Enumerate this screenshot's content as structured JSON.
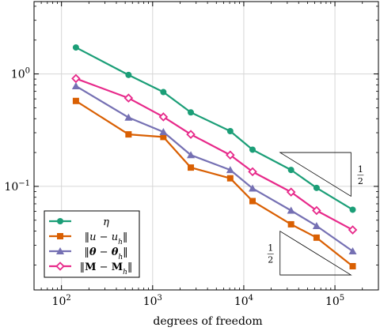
{
  "chart_data": {
    "type": "line",
    "title": "",
    "xlabel": "degrees of freedom",
    "ylabel": "",
    "xscale": "log",
    "yscale": "log",
    "xlim": [
      50,
      300000
    ],
    "ylim": [
      0.012,
      4.4
    ],
    "grid": true,
    "legend_position": "bottom-left",
    "x_ticks": [
      {
        "value": 100,
        "mant": "10",
        "exp": "2"
      },
      {
        "value": 1000,
        "mant": "10",
        "exp": "3"
      },
      {
        "value": 10000,
        "mant": "10",
        "exp": "4"
      },
      {
        "value": 100000,
        "mant": "10",
        "exp": "5"
      }
    ],
    "y_ticks": [
      {
        "value": 1,
        "mant": "10",
        "exp": "0"
      },
      {
        "value": 0.1,
        "mant": "10",
        "exp": "−1"
      }
    ],
    "x": [
      144,
      544,
      1312,
      2624,
      7104,
      12480,
      33024,
      62912,
      156672
    ],
    "series": [
      {
        "name": "η",
        "color": "#1b9e77",
        "marker": "circle",
        "values": [
          1.72,
          0.98,
          0.69,
          0.455,
          0.31,
          0.212,
          0.14,
          0.097,
          0.062
        ]
      },
      {
        "name": "‖u − u_h‖",
        "color": "#d95f02",
        "marker": "square",
        "values": [
          0.575,
          0.29,
          0.275,
          0.147,
          0.118,
          0.074,
          0.046,
          0.035,
          0.0195
        ]
      },
      {
        "name": "‖θ − θ_h‖",
        "color": "#7570b3",
        "marker": "triangle",
        "values": [
          0.78,
          0.41,
          0.305,
          0.19,
          0.14,
          0.096,
          0.061,
          0.0445,
          0.0265
        ]
      },
      {
        "name": "‖M − M_h‖",
        "color": "#e7298a",
        "marker": "diamond",
        "values": [
          0.91,
          0.61,
          0.415,
          0.29,
          0.19,
          0.135,
          0.089,
          0.061,
          0.041
        ]
      }
    ],
    "slope_triangles": [
      {
        "label": "1/2",
        "label_num": "1",
        "label_den": "2",
        "orientation": "upper"
      },
      {
        "label": "1/2",
        "label_num": "1",
        "label_den": "2",
        "orientation": "lower"
      }
    ],
    "legend": [
      {
        "series": 0,
        "parts": [
          {
            "t": "η",
            "i": true
          }
        ]
      },
      {
        "series": 1,
        "parts": [
          {
            "t": "‖"
          },
          {
            "t": "u",
            "i": true
          },
          {
            "t": " − "
          },
          {
            "t": "u",
            "i": true
          },
          {
            "t": "h",
            "i": true,
            "sub": true
          },
          {
            "t": "‖"
          }
        ]
      },
      {
        "series": 2,
        "parts": [
          {
            "t": "‖"
          },
          {
            "t": "θ",
            "i": true,
            "b": true
          },
          {
            "t": " − "
          },
          {
            "t": "θ",
            "i": true,
            "b": true
          },
          {
            "t": "h",
            "i": true,
            "sub": true
          },
          {
            "t": "‖"
          }
        ]
      },
      {
        "series": 3,
        "parts": [
          {
            "t": "‖"
          },
          {
            "t": "M",
            "b": true
          },
          {
            "t": " − "
          },
          {
            "t": "M",
            "b": true
          },
          {
            "t": "h",
            "i": true,
            "sub": true
          },
          {
            "t": "‖"
          }
        ]
      }
    ]
  }
}
